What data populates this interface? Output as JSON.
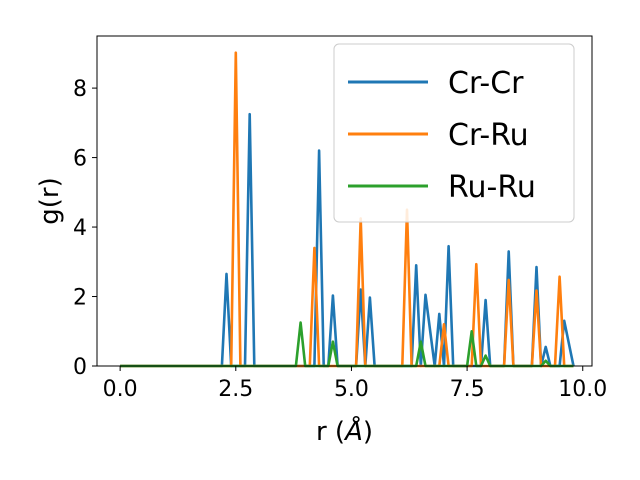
{
  "chart_data": {
    "type": "line",
    "xlabel": "r (",
    "xlabel_unit": "Å",
    "xlabel_close": ")",
    "ylabel": "g(r)",
    "xlim": [
      -0.5,
      10.2
    ],
    "ylim": [
      0,
      9.5
    ],
    "xticks": [
      0.0,
      2.5,
      5.0,
      7.5,
      10.0
    ],
    "xtick_labels": [
      "0.0",
      "2.5",
      "5.0",
      "7.5",
      "10.0"
    ],
    "yticks": [
      0,
      2,
      4,
      6,
      8
    ],
    "ytick_labels": [
      "0",
      "2",
      "4",
      "6",
      "8"
    ],
    "grid": false,
    "legend_position": "top-right",
    "series": [
      {
        "name": "Cr-Cr",
        "color": "#1f77b4",
        "x": [
          0.0,
          2.2,
          2.3,
          2.4,
          2.7,
          2.8,
          2.9,
          4.2,
          4.3,
          4.4,
          4.5,
          4.6,
          4.7,
          5.1,
          5.2,
          5.3,
          5.4,
          5.5,
          6.3,
          6.4,
          6.5,
          6.6,
          6.8,
          6.9,
          7.0,
          7.1,
          7.2,
          7.8,
          7.9,
          8.0,
          8.3,
          8.4,
          8.5,
          8.9,
          9.0,
          9.1,
          9.2,
          9.3,
          9.5,
          9.6,
          9.8
        ],
        "y": [
          0,
          0,
          2.65,
          0,
          0,
          7.25,
          0,
          0,
          6.2,
          0,
          0,
          2.03,
          0,
          0,
          2.2,
          0,
          1.97,
          0,
          0,
          2.9,
          0,
          2.05,
          0,
          1.5,
          0,
          3.45,
          0,
          0,
          1.9,
          0,
          0,
          3.3,
          0,
          0,
          2.85,
          0,
          0.55,
          0,
          0,
          1.3,
          0
        ]
      },
      {
        "name": "Cr-Ru",
        "color": "#ff7f0e",
        "x": [
          0.0,
          2.4,
          2.5,
          2.6,
          4.1,
          4.2,
          4.3,
          5.1,
          5.2,
          5.3,
          6.1,
          6.2,
          6.3,
          6.9,
          7.0,
          7.1,
          7.6,
          7.7,
          7.8,
          8.3,
          8.4,
          8.5,
          8.9,
          9.0,
          9.1,
          9.4,
          9.5,
          9.6,
          9.8
        ],
        "y": [
          0,
          0,
          9.02,
          0,
          0,
          3.4,
          0,
          0,
          4.25,
          0,
          0,
          4.5,
          0,
          0,
          1.2,
          0,
          0,
          2.93,
          0,
          0,
          2.48,
          0,
          0,
          2.17,
          0,
          0,
          2.57,
          0,
          0
        ]
      },
      {
        "name": "Ru-Ru",
        "color": "#2ca02c",
        "x": [
          0.0,
          3.8,
          3.9,
          4.0,
          4.5,
          4.6,
          4.7,
          6.4,
          6.5,
          6.6,
          7.5,
          7.6,
          7.7,
          7.8,
          7.9,
          8.0,
          9.1,
          9.2,
          9.3,
          9.8
        ],
        "y": [
          0,
          0,
          1.25,
          0,
          0,
          0.7,
          0,
          0,
          0.7,
          0,
          0,
          1.0,
          0,
          0,
          0.3,
          0,
          0,
          0.15,
          0,
          0
        ]
      }
    ]
  }
}
